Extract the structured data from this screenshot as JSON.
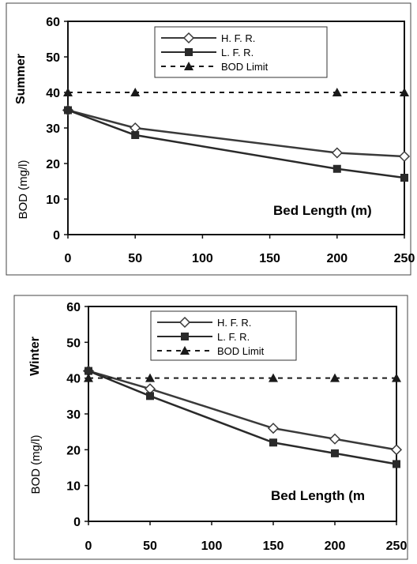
{
  "chart_data": [
    {
      "type": "line",
      "season_label": "Summer",
      "ylabel": "BOD (mg/l)",
      "xlabel": "Bed Length (m)",
      "xlim": [
        0,
        250
      ],
      "ylim": [
        0,
        60
      ],
      "x_ticks": [
        "0",
        "50",
        "100",
        "150",
        "200",
        "250"
      ],
      "y_ticks": [
        "0",
        "10",
        "20",
        "30",
        "40",
        "50",
        "60"
      ],
      "grid": false,
      "legend_position": "top-center",
      "series": [
        {
          "name": "H. F. R.",
          "marker": "diamond",
          "line": "solid",
          "color": "#3a3a3a",
          "points": [
            [
              0,
              35
            ],
            [
              50,
              30
            ],
            [
              200,
              23
            ],
            [
              250,
              22
            ]
          ]
        },
        {
          "name": "L. F. R.",
          "marker": "square",
          "line": "solid",
          "color": "#2a2a2a",
          "points": [
            [
              0,
              35
            ],
            [
              50,
              28
            ],
            [
              200,
              18.5
            ],
            [
              250,
              16
            ]
          ]
        },
        {
          "name": "BOD Limit",
          "marker": "triangle",
          "line": "dashed",
          "color": "#1a1a1a",
          "points": [
            [
              0,
              40
            ],
            [
              50,
              40
            ],
            [
              200,
              40
            ],
            [
              250,
              40
            ]
          ]
        }
      ]
    },
    {
      "type": "line",
      "season_label": "Winter",
      "ylabel": "BOD (mg/l)",
      "xlabel": "Bed Length (m",
      "xlim": [
        0,
        250
      ],
      "ylim": [
        0,
        60
      ],
      "x_ticks": [
        "0",
        "50",
        "100",
        "150",
        "200",
        "250"
      ],
      "y_ticks": [
        "0",
        "10",
        "20",
        "30",
        "40",
        "50",
        "60"
      ],
      "grid": false,
      "legend_position": "top-center",
      "series": [
        {
          "name": "H. F. R.",
          "marker": "diamond",
          "line": "solid",
          "color": "#3a3a3a",
          "points": [
            [
              0,
              42
            ],
            [
              50,
              37
            ],
            [
              150,
              26
            ],
            [
              200,
              23
            ],
            [
              250,
              20
            ]
          ]
        },
        {
          "name": "L. F. R.",
          "marker": "square",
          "line": "solid",
          "color": "#2a2a2a",
          "points": [
            [
              0,
              42
            ],
            [
              50,
              35
            ],
            [
              150,
              22
            ],
            [
              200,
              19
            ],
            [
              250,
              16
            ]
          ]
        },
        {
          "name": "BOD Limit",
          "marker": "triangle",
          "line": "dashed",
          "color": "#1a1a1a",
          "points": [
            [
              0,
              40
            ],
            [
              50,
              40
            ],
            [
              150,
              40
            ],
            [
              200,
              40
            ],
            [
              250,
              40
            ]
          ]
        }
      ]
    }
  ]
}
